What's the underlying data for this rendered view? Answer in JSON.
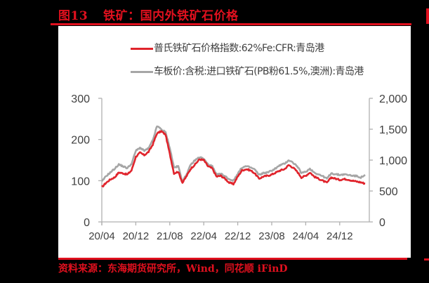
{
  "figure": {
    "label": "图13",
    "title": "铁矿：国内外铁矿石价格",
    "source": "资料来源：东海期货研究所，Wind，同花顺 iFinD",
    "accent_color": "#e0101e"
  },
  "legend": [
    {
      "label": "普氏铁矿石价格指数:62%Fe:CFR:青岛港",
      "color": "#e0242c"
    },
    {
      "label": "车板价:含税:进口铁矿石(PB粉61.5%,澳洲):青岛港",
      "color": "#a6a6a6"
    }
  ],
  "axes": {
    "left_ticks": [
      "300",
      "200",
      "100",
      "0"
    ],
    "right_ticks": [
      "2,000",
      "1,500",
      "1,000",
      "500",
      "0"
    ],
    "x_ticks": [
      "20/04",
      "20/12",
      "21/08",
      "22/04",
      "22/12",
      "23/08",
      "24/04",
      "24/12"
    ]
  },
  "chart_data": {
    "type": "line",
    "title": "铁矿：国内外铁矿石价格",
    "xlabel": "",
    "ylabel_left": "",
    "ylabel_right": "",
    "ylim_left": [
      0,
      300
    ],
    "ylim_right": [
      0,
      2000
    ],
    "grid": false,
    "legend_position": "top",
    "x": [
      "20/04",
      "20/05",
      "20/06",
      "20/07",
      "20/08",
      "20/09",
      "20/10",
      "20/11",
      "20/12",
      "21/01",
      "21/02",
      "21/03",
      "21/04",
      "21/05",
      "21/06",
      "21/07",
      "21/08",
      "21/09",
      "21/10",
      "21/11",
      "21/12",
      "22/01",
      "22/02",
      "22/03",
      "22/04",
      "22/05",
      "22/06",
      "22/07",
      "22/08",
      "22/09",
      "22/10",
      "22/11",
      "22/12",
      "23/01",
      "23/02",
      "23/03",
      "23/04",
      "23/05",
      "23/06",
      "23/07",
      "23/08",
      "23/09",
      "23/10",
      "23/11",
      "23/12",
      "24/01",
      "24/02",
      "24/03",
      "24/04",
      "24/05",
      "24/06",
      "24/07",
      "24/08",
      "24/09",
      "24/10",
      "24/11",
      "24/12",
      "25/01",
      "25/02",
      "25/03",
      "25/04",
      "25/05",
      "25/06"
    ],
    "series": [
      {
        "name": "普氏铁矿石价格指数:62%Fe:CFR:青岛港",
        "axis": "left",
        "values": [
          84,
          95,
          103,
          108,
          120,
          118,
          115,
          125,
          158,
          168,
          162,
          170,
          188,
          215,
          220,
          212,
          165,
          118,
          122,
          95,
          112,
          130,
          140,
          152,
          150,
          135,
          130,
          110,
          112,
          105,
          95,
          92,
          110,
          125,
          128,
          125,
          118,
          105,
          110,
          112,
          115,
          120,
          125,
          128,
          138,
          132,
          122,
          108,
          112,
          120,
          110,
          105,
          100,
          95,
          108,
          105,
          102,
          104,
          103,
          100,
          98,
          96,
          93
        ]
      },
      {
        "name": "车板价:含税:进口铁矿石(PB粉61.5%,澳洲):青岛港",
        "axis": "right",
        "values": [
          650,
          740,
          800,
          860,
          930,
          900,
          870,
          940,
          1150,
          1200,
          1150,
          1190,
          1320,
          1550,
          1500,
          1450,
          1200,
          880,
          900,
          650,
          780,
          930,
          1000,
          1050,
          1020,
          930,
          900,
          760,
          780,
          740,
          690,
          670,
          780,
          880,
          900,
          880,
          850,
          760,
          790,
          800,
          830,
          870,
          920,
          940,
          1000,
          960,
          900,
          790,
          810,
          860,
          800,
          770,
          740,
          700,
          790,
          770,
          760,
          770,
          760,
          750,
          740,
          720,
          760
        ]
      }
    ]
  }
}
